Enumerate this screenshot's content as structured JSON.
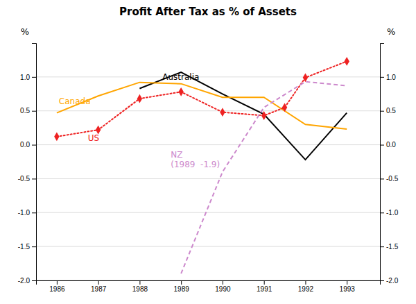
{
  "chart_data": {
    "type": "line",
    "title": "Profit After Tax as % of Assets",
    "y_label": "%",
    "y2_label": "%",
    "x": [
      1986,
      1987,
      1988,
      1989,
      1990,
      1991,
      1992,
      1993
    ],
    "xlim": [
      1985.5,
      1993.8
    ],
    "xticks": [
      1986,
      1987,
      1988,
      1989,
      1990,
      1991,
      1992,
      1993
    ],
    "ylim": [
      -2.0,
      1.5
    ],
    "yticks": [
      {
        "value": -2.0,
        "label": "-2.0"
      },
      -1.5,
      {
        "value": -1.0,
        "label": "-1.0"
      },
      -0.5,
      {
        "value": 0.0,
        "label": "0.0"
      },
      0.5,
      {
        "value": 1.0,
        "label": "1.0"
      }
    ],
    "y2lim": [
      -2.0,
      1.5
    ],
    "y2ticks": [
      {
        "value": -2.0,
        "label": "-2.0"
      },
      -1.5,
      {
        "value": -1.0,
        "label": "-1.0"
      },
      -0.5,
      {
        "value": 0.0,
        "label": "0.0"
      },
      0.5,
      {
        "value": 1.0,
        "label": "1.0"
      }
    ],
    "grid": true,
    "series": [
      {
        "name": "Australia",
        "color": "#000000",
        "line_style": "solid",
        "values": [
          null,
          null,
          0.83,
          1.07,
          0.75,
          0.45,
          -0.22,
          0.47
        ]
      },
      {
        "name": "Canada",
        "color": "#FFA500",
        "line_style": "solid",
        "values": [
          0.47,
          0.72,
          0.92,
          0.9,
          0.7,
          0.7,
          0.3,
          0.23
        ]
      },
      {
        "name": "US",
        "color": "#EE2222",
        "line_style": "dotted",
        "marker": "diamond",
        "x": [
          1986,
          1987,
          1988,
          1989,
          1990,
          1991,
          1991.5,
          1992,
          1993
        ],
        "values": [
          0.12,
          0.22,
          0.68,
          0.78,
          0.48,
          0.43,
          0.55,
          0.99,
          1.23
        ]
      },
      {
        "name": "NZ",
        "color": "#CC88CC",
        "line_style": "dashed",
        "values": [
          null,
          null,
          null,
          -1.9,
          -0.4,
          0.55,
          0.93,
          0.87
        ]
      }
    ],
    "annotations": [
      {
        "text": "Australia",
        "x": 1988.55,
        "y": 0.96,
        "color": "#000000"
      },
      {
        "text": "Canada",
        "x": 1986.05,
        "y": 0.6,
        "color": "#FFA500"
      },
      {
        "text": "US",
        "x": 1986.75,
        "y": 0.06,
        "color": "#EE2222"
      },
      {
        "text": "NZ\n(1989  -1.9)",
        "x": 1988.75,
        "y": -0.33,
        "color": "#CC88CC"
      }
    ]
  }
}
